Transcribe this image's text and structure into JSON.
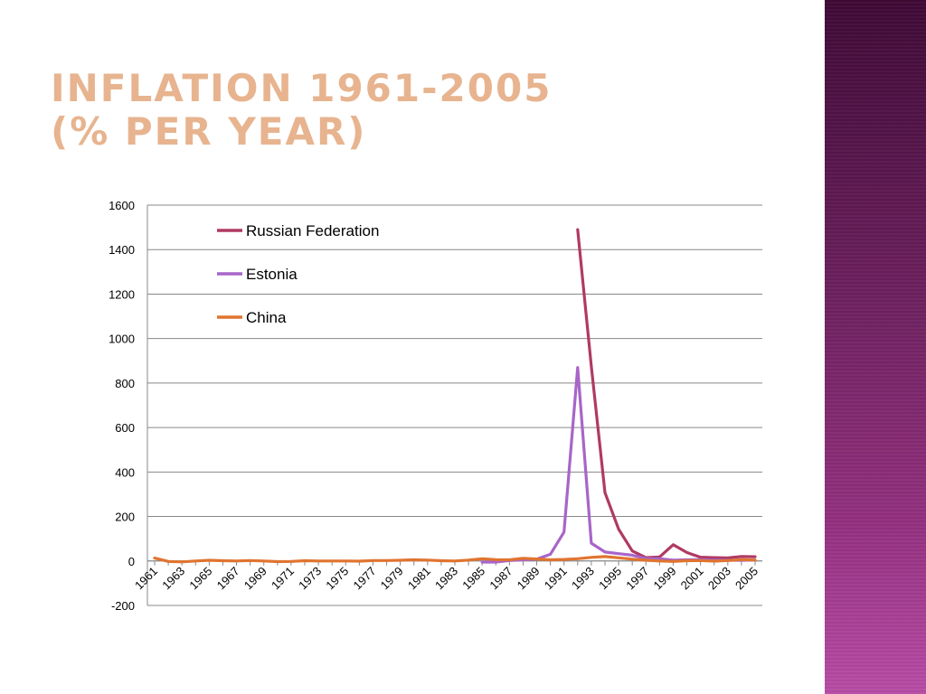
{
  "slide": {
    "title_line1": "INFLATION 1961-2005",
    "title_line2": "(% PER YEAR)"
  },
  "colors": {
    "title": "#e7b48f",
    "side_band": "#7a2a6b",
    "grid": "#888888"
  },
  "chart_data": {
    "type": "line",
    "title": "",
    "xlabel": "",
    "ylabel": "",
    "ylim": [
      -200,
      1600
    ],
    "y_ticks": [
      "-200",
      "0",
      "200",
      "400",
      "600",
      "800",
      "1000",
      "1200",
      "1400",
      "1600"
    ],
    "grid": "horizontal",
    "legend_position": "top-left",
    "x": [
      1961,
      1962,
      1963,
      1964,
      1965,
      1966,
      1967,
      1968,
      1969,
      1970,
      1971,
      1972,
      1973,
      1974,
      1975,
      1976,
      1977,
      1978,
      1979,
      1980,
      1981,
      1982,
      1983,
      1984,
      1985,
      1986,
      1987,
      1988,
      1989,
      1990,
      1991,
      1992,
      1993,
      1994,
      1995,
      1996,
      1997,
      1998,
      1999,
      2000,
      2001,
      2002,
      2003,
      2004,
      2005
    ],
    "x_tick_labels": [
      "1961",
      "1963",
      "1965",
      "1967",
      "1969",
      "1971",
      "1973",
      "1975",
      "1977",
      "1979",
      "1981",
      "1983",
      "1985",
      "1987",
      "1989",
      "1991",
      "1993",
      "1995",
      "1997",
      "1999",
      "2001",
      "2003",
      "2005"
    ],
    "series": [
      {
        "name": "Russian Federation",
        "color": "#b03a63",
        "values": [
          null,
          null,
          null,
          null,
          null,
          null,
          null,
          null,
          null,
          null,
          null,
          null,
          null,
          null,
          null,
          null,
          null,
          null,
          null,
          null,
          null,
          null,
          null,
          null,
          null,
          null,
          null,
          null,
          null,
          null,
          null,
          1490,
          875,
          307,
          143,
          45,
          15,
          18,
          73,
          38,
          17,
          15,
          14,
          20,
          19
        ]
      },
      {
        "name": "Estonia",
        "color": "#a865c9",
        "values": [
          null,
          null,
          null,
          null,
          null,
          null,
          null,
          null,
          null,
          null,
          null,
          null,
          null,
          null,
          null,
          null,
          null,
          null,
          null,
          null,
          null,
          null,
          null,
          null,
          -5,
          -5,
          2,
          5,
          8,
          30,
          130,
          870,
          80,
          40,
          33,
          26,
          11,
          10,
          4,
          5,
          6,
          4,
          3,
          3,
          4
        ]
      },
      {
        "name": "China",
        "color": "#e0742f",
        "values": [
          13,
          -2,
          -4,
          0,
          3,
          1,
          0,
          2,
          0,
          -3,
          -2,
          1,
          0,
          0,
          0,
          -1,
          2,
          2,
          3,
          5,
          4,
          1,
          0,
          4,
          10,
          6,
          5,
          12,
          9,
          5,
          7,
          10,
          16,
          20,
          14,
          8,
          3,
          0,
          -2,
          1,
          2,
          -1,
          2,
          6,
          4
        ]
      }
    ]
  }
}
